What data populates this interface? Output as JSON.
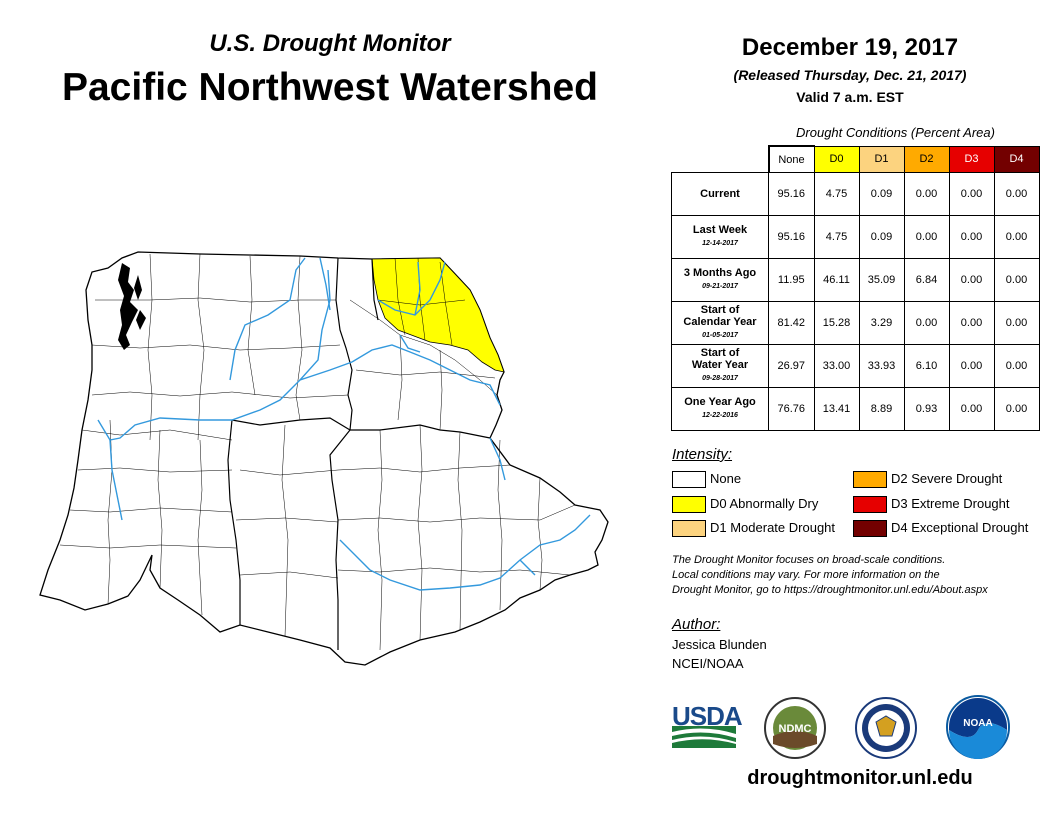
{
  "header": {
    "subtitle": "U.S. Drought Monitor",
    "title": "Pacific Northwest Watershed",
    "date": "December 19, 2017",
    "released": "(Released Thursday, Dec. 21, 2017)",
    "valid": "Valid 7 a.m. EST"
  },
  "table": {
    "caption": "Drought Conditions (Percent Area)",
    "columns": [
      "None",
      "D0",
      "D1",
      "D2",
      "D3",
      "D4"
    ],
    "column_colors": [
      "#ffffff",
      "#ffff00",
      "#fcd37f",
      "#ffaa00",
      "#e60000",
      "#730000"
    ],
    "column_text_colors": [
      "#000000",
      "#000000",
      "#000000",
      "#000000",
      "#ffffff",
      "#ffffff"
    ],
    "rows": [
      {
        "label": "Current",
        "label2": "",
        "date": "",
        "values": [
          "95.16",
          "4.75",
          "0.09",
          "0.00",
          "0.00",
          "0.00"
        ]
      },
      {
        "label": "Last Week",
        "label2": "",
        "date": "12-14-2017",
        "values": [
          "95.16",
          "4.75",
          "0.09",
          "0.00",
          "0.00",
          "0.00"
        ]
      },
      {
        "label": "3 Months Ago",
        "label2": "",
        "date": "09-21-2017",
        "values": [
          "11.95",
          "46.11",
          "35.09",
          "6.84",
          "0.00",
          "0.00"
        ]
      },
      {
        "label": "Start of",
        "label2": "Calendar Year",
        "date": "01-05-2017",
        "values": [
          "81.42",
          "15.28",
          "3.29",
          "0.00",
          "0.00",
          "0.00"
        ]
      },
      {
        "label": "Start of",
        "label2": "Water Year",
        "date": "09-28-2017",
        "values": [
          "26.97",
          "33.00",
          "33.93",
          "6.10",
          "0.00",
          "0.00"
        ]
      },
      {
        "label": "One Year Ago",
        "label2": "",
        "date": "12-22-2016",
        "values": [
          "76.76",
          "13.41",
          "8.89",
          "0.93",
          "0.00",
          "0.00"
        ]
      }
    ]
  },
  "legend": {
    "title": "Intensity:",
    "items": [
      {
        "label": "None",
        "color": "#ffffff"
      },
      {
        "label": "D0 Abnormally Dry",
        "color": "#ffff00"
      },
      {
        "label": "D1 Moderate Drought",
        "color": "#fcd37f"
      },
      {
        "label": "D2 Severe Drought",
        "color": "#ffaa00"
      },
      {
        "label": "D3 Extreme Drought",
        "color": "#e60000"
      },
      {
        "label": "D4 Exceptional Drought",
        "color": "#730000"
      }
    ]
  },
  "note": {
    "line1": "The Drought Monitor focuses on broad-scale conditions.",
    "line2": "Local conditions may vary. For more information on the",
    "line3": "Drought Monitor, go to https://droughtmonitor.unl.edu/About.aspx"
  },
  "author": {
    "title": "Author:",
    "name": "Jessica Blunden",
    "org": "NCEI/NOAA"
  },
  "logos": {
    "usda": "USDA",
    "ndmc": "NDMC",
    "noaa": "NOAA"
  },
  "footer": {
    "site": "droughtmonitor.unl.edu"
  },
  "map": {
    "colors": {
      "none": "#ffffff",
      "d0": "#ffff00",
      "border": "#000000",
      "river": "#3399dd",
      "water": "#000000"
    }
  }
}
